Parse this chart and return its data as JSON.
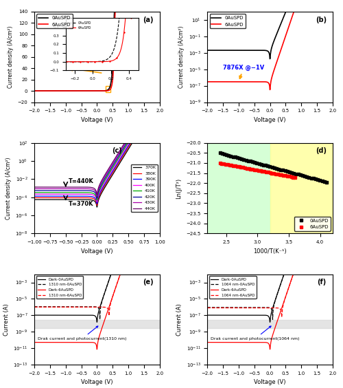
{
  "fig_width": 5.0,
  "fig_height": 5.64,
  "panel_labels": [
    "(a)",
    "(b)",
    "(c)",
    "(d)",
    "(e)",
    "(f)"
  ],
  "colors": {
    "black": "#000000",
    "red": "#FF0000",
    "orange_arrow": "#FFA500",
    "blue_text": "#0000FF",
    "yellow_bg": "#FFFF99",
    "green_bg": "#CCFFCC"
  },
  "panel_a": {
    "xlabel": "Voltage (V)",
    "ylabel": "Current density (A/cm²)",
    "xlim": [
      -2,
      2
    ],
    "ylim": [
      -20,
      140
    ],
    "legend": [
      "0AuSPD",
      "6AuSPD"
    ]
  },
  "panel_b": {
    "xlabel": "Voltage (V)",
    "ylabel": "Current density (A/cm²)",
    "xlim": [
      -2,
      2
    ],
    "ylog": true,
    "legend": [
      "0AuSPD",
      "6AuSPD"
    ],
    "annotation": "7876X @−1V"
  },
  "panel_c": {
    "xlabel": "Voltage (V)",
    "ylabel": "Current density (A/cm²)",
    "xlim": [
      -1,
      1
    ],
    "ylog": true,
    "temps": [
      "370K",
      "380K",
      "390K",
      "400K",
      "410K",
      "420K",
      "430K",
      "440K"
    ],
    "temp_colors": [
      "#000000",
      "#FF0000",
      "#0000FF",
      "#FF00FF",
      "#00AA00",
      "#000099",
      "#AA00AA",
      "#660066"
    ],
    "arrow_label_top": "T=440K",
    "arrow_label_bot": "T=370K"
  },
  "panel_d": {
    "xlabel": "1000/T(K⁻¹)",
    "ylabel": "Ln(J/T²)",
    "xlim": [
      2.2,
      4.2
    ],
    "ylim": [
      -24.5,
      -20.0
    ],
    "legend": [
      "0AuSPD",
      "6AuSPD"
    ],
    "bg_green": [
      2.2,
      3.2
    ],
    "bg_yellow": [
      3.2,
      4.2
    ]
  },
  "panel_e": {
    "xlabel": "Voltage (V)",
    "ylabel": "Current (A)",
    "xlim": [
      -2,
      2
    ],
    "ylog": true,
    "legend": [
      "Dark-0AuSPD",
      "1310 nm-0AuSPD",
      "Dark-6AuSPD",
      "1310 nm-6AuSPD"
    ],
    "annotation": "Drak current and photocurrent(1310 nm)"
  },
  "panel_f": {
    "xlabel": "Voltage (V)",
    "ylabel": "Current (A)",
    "xlim": [
      -2,
      2
    ],
    "ylog": true,
    "legend": [
      "Dark-0AuSPD",
      "1064 nm-0AuSPD",
      "Dark-6AuSPD",
      "1064 nm-6AuSPD"
    ],
    "annotation": "Drak current and photocurrent(1064 nm)"
  }
}
